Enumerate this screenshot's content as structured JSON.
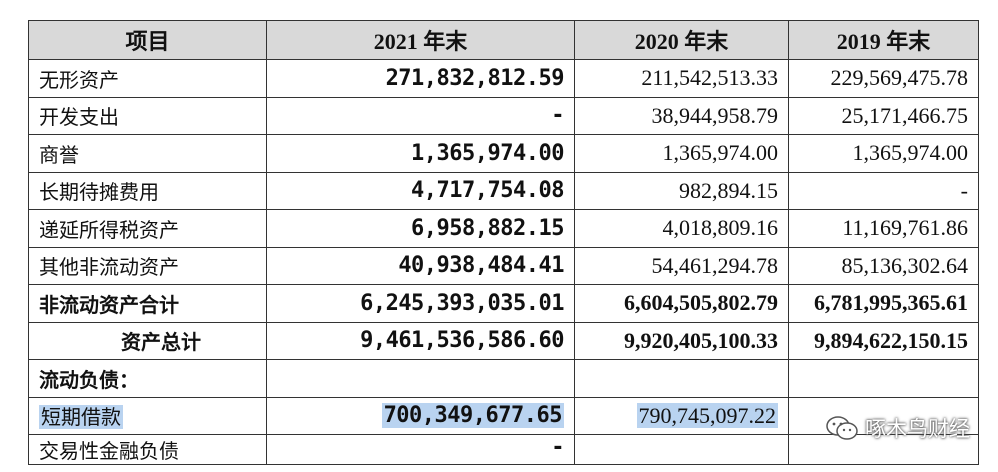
{
  "table": {
    "headers": [
      "项目",
      "2021 年末",
      "2020 年末",
      "2019 年末"
    ],
    "rows": [
      {
        "label": "无形资产",
        "y2021": "271,832,812.59",
        "y2020": "211,542,513.33",
        "y2019": "229,569,475.78"
      },
      {
        "label": "开发支出",
        "y2021": "-",
        "y2020": "38,944,958.79",
        "y2019": "25,171,466.75"
      },
      {
        "label": "商誉",
        "y2021": "1,365,974.00",
        "y2020": "1,365,974.00",
        "y2019": "1,365,974.00"
      },
      {
        "label": "长期待摊费用",
        "y2021": "4,717,754.08",
        "y2020": "982,894.15",
        "y2019": "-"
      },
      {
        "label": "递延所得税资产",
        "y2021": "6,958,882.15",
        "y2020": "4,018,809.16",
        "y2019": "11,169,761.86"
      },
      {
        "label": "其他非流动资产",
        "y2021": "40,938,484.41",
        "y2020": "54,461,294.78",
        "y2019": "85,136,302.64"
      },
      {
        "label": "非流动资产合计",
        "y2021": "6,245,393,035.01",
        "y2020": "6,604,505,802.79",
        "y2019": "6,781,995,365.61"
      },
      {
        "label": "资产总计",
        "y2021": "9,461,536,586.60",
        "y2020": "9,920,405,100.33",
        "y2019": "9,894,622,150.15"
      },
      {
        "label": "流动负债：",
        "y2021": "",
        "y2020": "",
        "y2019": ""
      },
      {
        "label": "短期借款",
        "y2021": "700,349,677.65",
        "y2020": "790,745,097.22",
        "y2019": ""
      },
      {
        "label": "交易性金融负债",
        "y2021": "-",
        "y2020": "",
        "y2019": ""
      }
    ]
  },
  "watermark": {
    "text": "啄木鸟财经",
    "icon": "wechat-icon"
  },
  "colors": {
    "header_bg": "#d9d9d9",
    "highlight": "#b9d3f0",
    "border": "#333333"
  }
}
